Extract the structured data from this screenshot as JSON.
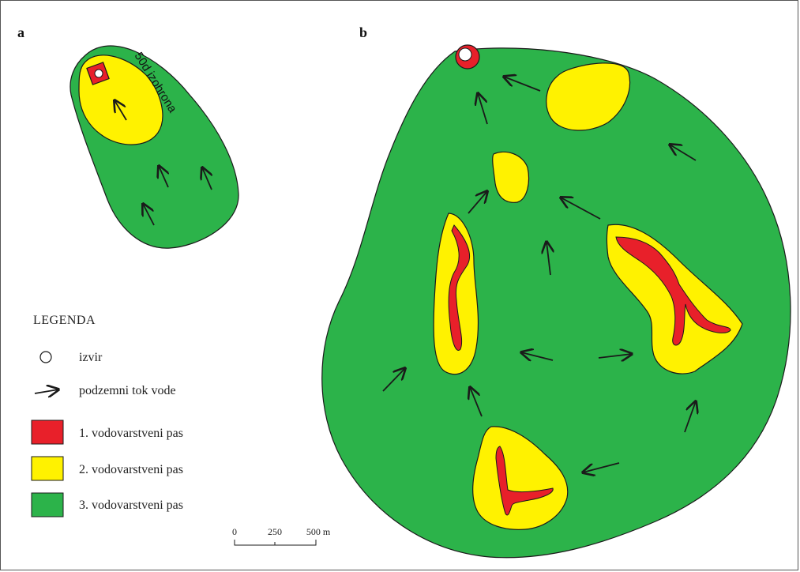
{
  "panels": {
    "a": {
      "label": "a"
    },
    "b": {
      "label": "b"
    }
  },
  "isochrone_label": "50d izohrona",
  "legend": {
    "title": "LEGENDA",
    "items": [
      {
        "key": "spring",
        "label": "izvir"
      },
      {
        "key": "flow",
        "label": "podzemni tok vode"
      },
      {
        "key": "zone1",
        "label": "1. vodovarstveni pas",
        "color": "#e8202a"
      },
      {
        "key": "zone2",
        "label": "2. vodovarstveni pas",
        "color": "#fff200"
      },
      {
        "key": "zone3",
        "label": "3. vodovarstveni pas",
        "color": "#2cb34a"
      }
    ]
  },
  "scale_bar": {
    "ticks": [
      "0",
      "250",
      "500 m"
    ]
  },
  "colors": {
    "zone1": "#e8202a",
    "zone2": "#fff200",
    "zone3": "#2cb34a",
    "outline": "#1a1a1a"
  }
}
